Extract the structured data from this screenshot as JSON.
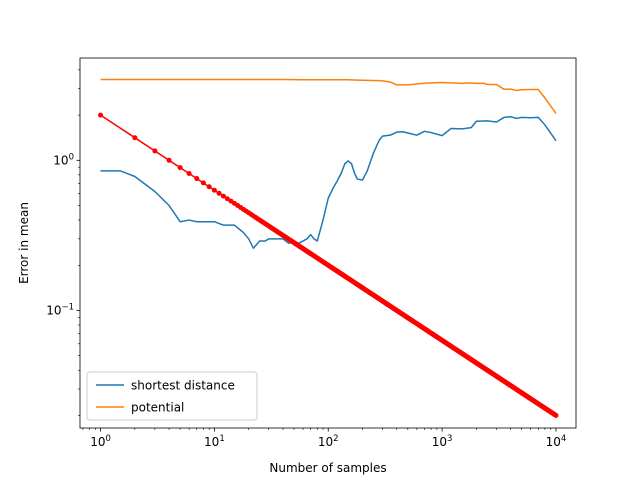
{
  "chart_data": {
    "type": "line",
    "title": "",
    "xlabel": "Number of samples",
    "ylabel": "Error in mean",
    "xscale": "log",
    "yscale": "log",
    "xlim": [
      0.66,
      15000
    ],
    "ylim": [
      0.0165,
      4.8
    ],
    "x_ticks": [
      {
        "value": 1,
        "label": "10",
        "exp": "0"
      },
      {
        "value": 10,
        "label": "10",
        "exp": "1"
      },
      {
        "value": 100,
        "label": "10",
        "exp": "2"
      },
      {
        "value": 1000,
        "label": "10",
        "exp": "3"
      },
      {
        "value": 10000,
        "label": "10",
        "exp": "4"
      }
    ],
    "y_ticks": [
      {
        "value": 0.1,
        "label": "10",
        "exp": "−1"
      },
      {
        "value": 1,
        "label": "10",
        "exp": "0"
      }
    ],
    "grid": false,
    "legend_position": "lower-left",
    "series": [
      {
        "name": "shortest distance",
        "color": "#1f77b4",
        "x": [
          1,
          1.5,
          2,
          3,
          4,
          5,
          6,
          7,
          8,
          10,
          12,
          15,
          18,
          20,
          22,
          25,
          28,
          30,
          35,
          40,
          45,
          50,
          55,
          60,
          65,
          70,
          75,
          80,
          90,
          100,
          110,
          120,
          130,
          140,
          150,
          160,
          170,
          180,
          200,
          220,
          250,
          280,
          300,
          350,
          400,
          450,
          500,
          600,
          700,
          800,
          1000,
          1200,
          1500,
          1800,
          2000,
          2500,
          3000,
          3500,
          4000,
          4500,
          5000,
          6000,
          7000,
          8000,
          10000
        ],
        "values": [
          0.85,
          0.85,
          0.78,
          0.62,
          0.5,
          0.39,
          0.4,
          0.39,
          0.39,
          0.39,
          0.37,
          0.37,
          0.33,
          0.3,
          0.26,
          0.29,
          0.29,
          0.3,
          0.3,
          0.3,
          0.28,
          0.29,
          0.28,
          0.29,
          0.3,
          0.32,
          0.3,
          0.29,
          0.4,
          0.56,
          0.65,
          0.73,
          0.82,
          0.95,
          0.99,
          0.95,
          0.82,
          0.75,
          0.74,
          0.85,
          1.12,
          1.36,
          1.45,
          1.47,
          1.54,
          1.55,
          1.52,
          1.47,
          1.56,
          1.53,
          1.46,
          1.63,
          1.62,
          1.65,
          1.82,
          1.83,
          1.8,
          1.93,
          1.95,
          1.9,
          1.93,
          1.92,
          1.93,
          1.72,
          1.35
        ]
      },
      {
        "name": "potential",
        "color": "#ff7f0e",
        "x": [
          1,
          2,
          5,
          10,
          20,
          40,
          60,
          80,
          100,
          150,
          180,
          250,
          280,
          300,
          350,
          400,
          500,
          700,
          800,
          1000,
          1200,
          1500,
          1700,
          2000,
          2300,
          2500,
          3000,
          3500,
          4000,
          4500,
          5000,
          6000,
          7000,
          8000,
          10000
        ],
        "values": [
          3.45,
          3.45,
          3.45,
          3.45,
          3.45,
          3.45,
          3.44,
          3.44,
          3.44,
          3.44,
          3.42,
          3.4,
          3.39,
          3.38,
          3.32,
          3.18,
          3.18,
          3.26,
          3.28,
          3.3,
          3.28,
          3.25,
          3.28,
          3.25,
          3.26,
          3.2,
          3.2,
          2.97,
          2.98,
          2.92,
          2.95,
          2.96,
          2.96,
          2.6,
          2.05
        ]
      },
      {
        "name": "",
        "color": "#ff0000",
        "marker": "circle",
        "model": "2 / sqrt(n)",
        "x_range": [
          1,
          10000
        ],
        "formula_coefficient": 2,
        "formula_exponent": -0.5
      }
    ]
  }
}
